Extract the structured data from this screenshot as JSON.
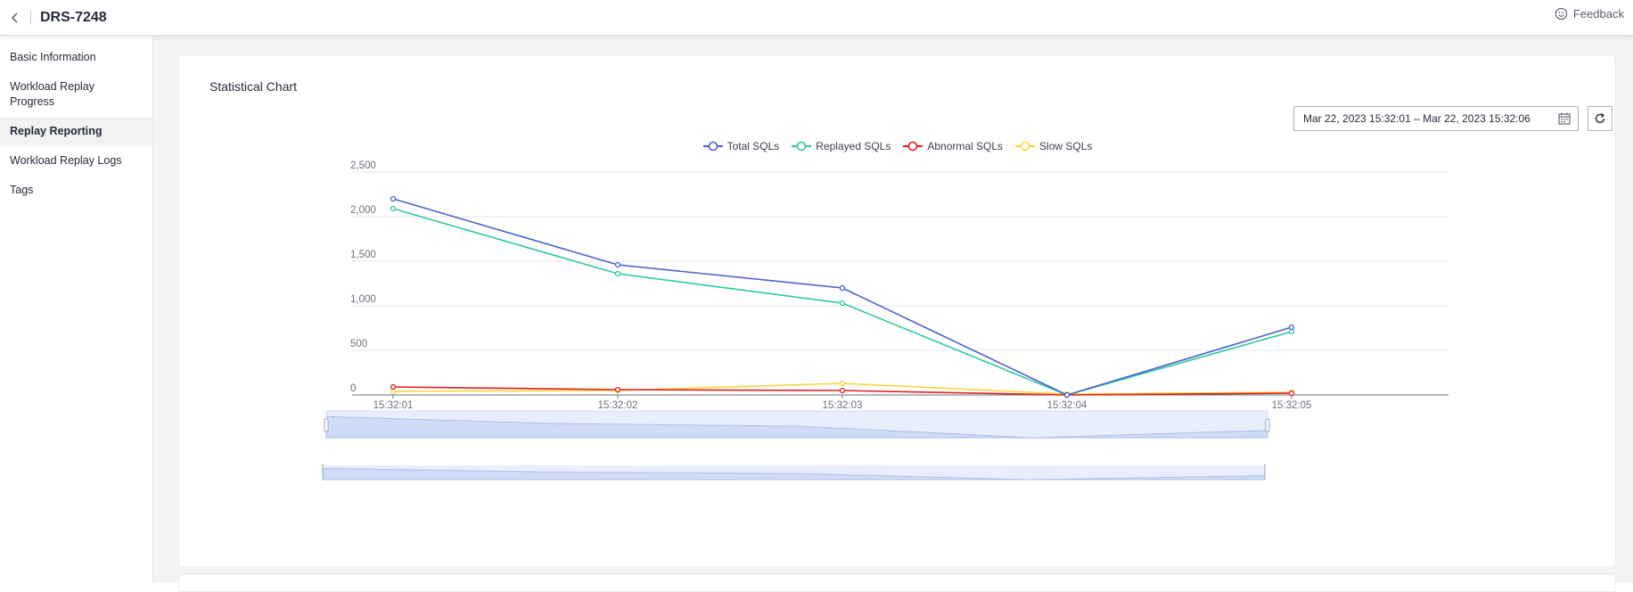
{
  "header": {
    "title": "DRS-7248",
    "feedback_label": "Feedback"
  },
  "sidebar": {
    "items": [
      {
        "label": "Basic Information",
        "active": false
      },
      {
        "label": "Workload Replay Progress",
        "active": false
      },
      {
        "label": "Replay Reporting",
        "active": true
      },
      {
        "label": "Workload Replay Logs",
        "active": false
      },
      {
        "label": "Tags",
        "active": false
      }
    ]
  },
  "main": {
    "card_title": "Statistical Chart",
    "date_range": "Mar 22, 2023 15:32:01 – Mar 22, 2023 15:32:06"
  },
  "chart_data": {
    "type": "line",
    "categories": [
      "15:32:01",
      "15:32:02",
      "15:32:03",
      "15:32:04",
      "15:32:05"
    ],
    "y_ticks": [
      "0",
      "500",
      "1,000",
      "1,500",
      "2,000",
      "2,500"
    ],
    "ylim": [
      0,
      2500
    ],
    "grid": true,
    "legend_position": "top-center",
    "series": [
      {
        "name": "Total SQLs",
        "color": "#4a64c9",
        "values": [
          2200,
          1460,
          1200,
          0,
          760
        ]
      },
      {
        "name": "Replayed SQLs",
        "color": "#2ec7a3",
        "values": [
          2090,
          1360,
          1030,
          0,
          710
        ]
      },
      {
        "name": "Abnormal SQLs",
        "color": "#e02020",
        "values": [
          90,
          60,
          50,
          0,
          20
        ]
      },
      {
        "name": "Slow SQLs",
        "color": "#f5d63d",
        "values": [
          40,
          50,
          130,
          10,
          30
        ]
      }
    ]
  }
}
